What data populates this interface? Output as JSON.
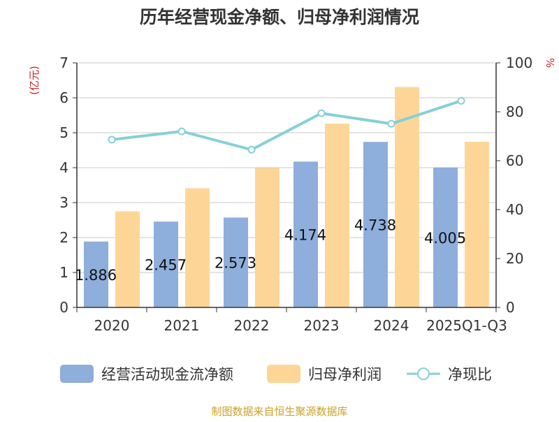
{
  "chart_data": {
    "type": "bar",
    "title": "历年经营现金净额、归母净利润情况",
    "ylabel_left": "(亿元)",
    "ylabel_right": "%",
    "categories": [
      "2020",
      "2021",
      "2022",
      "2023",
      "2024",
      "2025Q1-Q3"
    ],
    "ylim_left": [
      0,
      7
    ],
    "ylim_right": [
      0,
      100
    ],
    "yticks_left": [
      "0",
      "1",
      "2",
      "3",
      "4",
      "5",
      "6",
      "7"
    ],
    "yticks_right": [
      "0",
      "20",
      "40",
      "60",
      "80",
      "100"
    ],
    "grid": true,
    "legend_position": "bottom",
    "series": [
      {
        "name": "经营活动现金流净额",
        "kind": "bar",
        "axis": "left",
        "color": "#8eaedb",
        "values": [
          1.886,
          2.457,
          2.573,
          4.174,
          4.738,
          4.005
        ],
        "labels": [
          "1.886",
          "2.457",
          "2.573",
          "4.174",
          "4.738",
          "4.005"
        ]
      },
      {
        "name": "归母净利润",
        "kind": "bar",
        "axis": "left",
        "color": "#fdd697",
        "values": [
          2.75,
          3.41,
          3.99,
          5.26,
          6.31,
          4.74
        ]
      },
      {
        "name": "净现比",
        "kind": "line",
        "axis": "right",
        "color": "#86d0d6",
        "values": [
          68.6,
          72.0,
          64.5,
          79.4,
          75.1,
          84.5
        ]
      }
    ],
    "source": "制图数据来自恒生聚源数据库"
  }
}
